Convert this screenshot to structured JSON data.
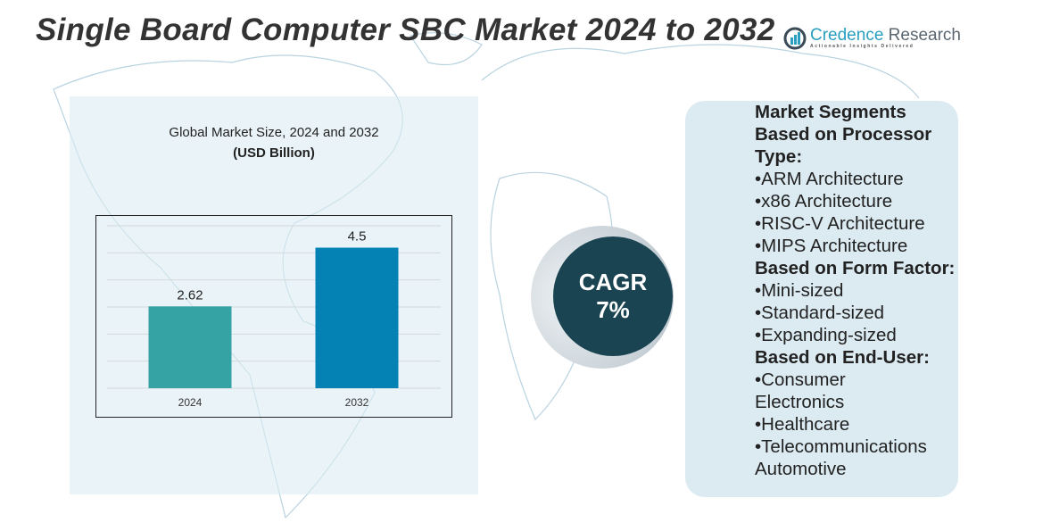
{
  "title": "Single Board Computer SBC Market 2024 to 2032",
  "logo": {
    "name_a": "Credence",
    "name_b": " Research",
    "tagline": "Actionable Insights Delivered"
  },
  "chart_data": {
    "type": "bar",
    "title": "Global Market Size, 2024 and 2032",
    "ylabel": "(USD Billion)",
    "categories": [
      "2024",
      "2032"
    ],
    "values": [
      2.62,
      4.5
    ],
    "data_labels": [
      "2.62",
      "4.5"
    ],
    "colors": [
      "#35a3a3",
      "#0582b4"
    ],
    "ylim": [
      0,
      5.2
    ],
    "grid": true
  },
  "cagr": {
    "label": "CAGR",
    "value": "7%"
  },
  "segments": [
    {
      "text": "Market Segments",
      "heading": true
    },
    {
      "text": "Based on Processor",
      "heading": true
    },
    {
      "text": "Type:",
      "heading": true
    },
    {
      "text": "•ARM Architecture"
    },
    {
      "text": "•x86 Architecture"
    },
    {
      "text": "•RISC-V Architecture"
    },
    {
      "text": "•MIPS Architecture"
    },
    {
      "text": "Based on Form Factor:",
      "heading": true
    },
    {
      "text": "•Mini-sized"
    },
    {
      "text": "•Standard-sized"
    },
    {
      "text": "•Expanding-sized"
    },
    {
      "text": "Based on End-User:",
      "heading": true
    },
    {
      "text": "•Consumer"
    },
    {
      "text": "Electronics"
    },
    {
      "text": "•Healthcare"
    },
    {
      "text": "•Telecommunications"
    },
    {
      "text": "Automotive"
    }
  ]
}
